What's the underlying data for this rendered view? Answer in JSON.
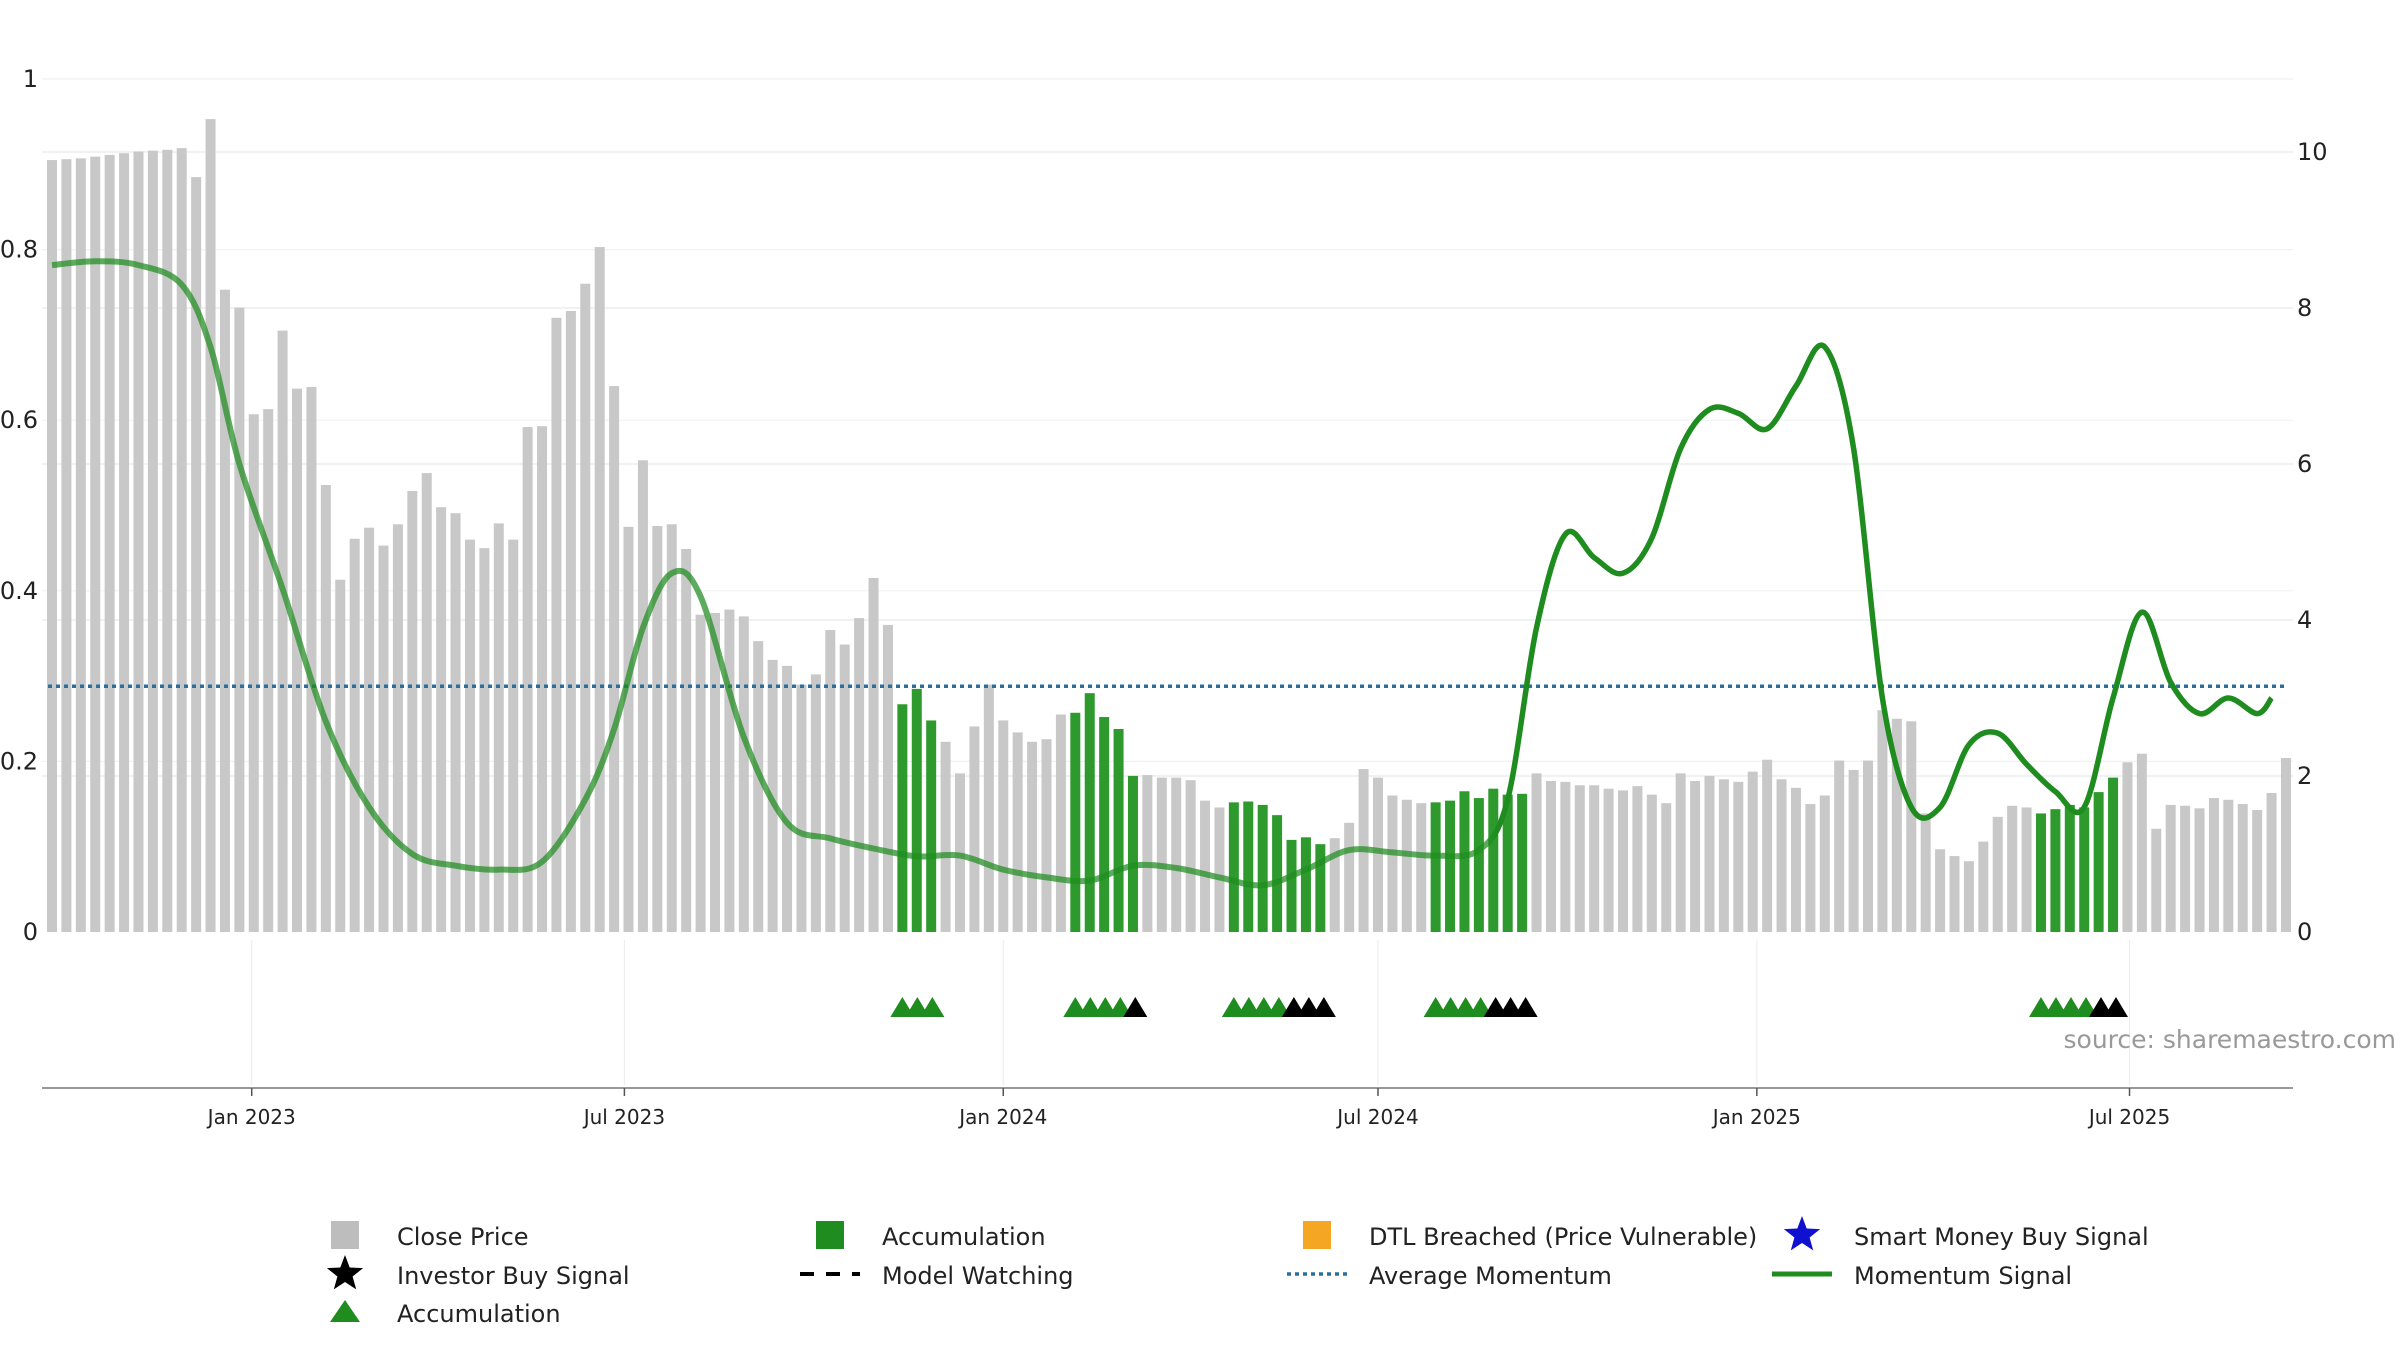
{
  "chart_data": {
    "type": "bar",
    "source": "source: sharemaestro.com",
    "x_ticks": [
      "Jan 2023",
      "Jul 2023",
      "Jan 2024",
      "Jul 2024",
      "Jan 2025",
      "Jul 2025"
    ],
    "y_left_ticks": [
      "0",
      "0.2",
      "0.4",
      "0.6",
      "0.8",
      "1"
    ],
    "y_right_ticks": [
      "0",
      "2",
      "4",
      "6",
      "8",
      "10"
    ],
    "y_left_lim": [
      0,
      1.0
    ],
    "y_right_lim": [
      0,
      10.95
    ],
    "grid": true,
    "legend_position": "bottom",
    "legend": [
      {
        "label": "Close Price",
        "marker": "square",
        "color": "#bdbdbd"
      },
      {
        "label": "Accumulation",
        "marker": "square",
        "color": "#1e8c1e"
      },
      {
        "label": "DTL Breached (Price Vulnerable)",
        "marker": "square",
        "color": "#f5a623"
      },
      {
        "label": "Smart Money Buy Signal",
        "marker": "star",
        "color": "#1010d0"
      },
      {
        "label": "Investor Buy Signal",
        "marker": "star",
        "color": "#000000"
      },
      {
        "label": "Model Watching",
        "marker": "dash",
        "color": "#000000"
      },
      {
        "label": "Average Momentum",
        "marker": "dotted",
        "color": "#2b6f9e"
      },
      {
        "label": "Momentum Signal",
        "marker": "line",
        "color": "#1e8c1e"
      },
      {
        "label": "Accumulation",
        "marker": "triangle",
        "color": "#1e8c1e"
      }
    ],
    "colors": {
      "close": "#c8c8c8",
      "accumulation": "#2e9a2e",
      "momentum": "#1e8c1e",
      "average": "#2b6f9e",
      "investor": "#000000"
    },
    "close_price": {
      "start_date": "2022-09-26",
      "step_days": 7,
      "values": [
        0.905,
        0.906,
        0.907,
        0.909,
        0.911,
        0.913,
        0.915,
        0.916,
        0.917,
        0.919,
        0.885,
        0.953,
        0.753,
        0.732,
        0.607,
        0.613,
        0.705,
        0.637,
        0.639,
        0.524,
        0.413,
        0.461,
        0.474,
        0.453,
        0.478,
        0.517,
        0.538,
        0.498,
        0.491,
        0.46,
        0.45,
        0.479,
        0.46,
        0.592,
        0.593,
        0.72,
        0.728,
        0.76,
        0.803,
        0.64,
        0.475,
        0.553,
        0.476,
        0.478,
        0.449,
        0.372,
        0.374,
        0.378,
        0.37,
        0.341,
        0.319,
        0.312,
        0.29,
        0.302,
        0.354,
        0.337,
        0.368,
        0.415,
        0.36,
        0.267,
        0.285,
        0.248,
        0.223,
        0.186,
        0.241,
        0.29,
        0.248,
        0.234,
        0.223,
        0.226,
        0.255,
        0.257,
        0.28,
        0.252,
        0.238,
        0.183,
        0.184,
        0.181,
        0.181,
        0.178,
        0.154,
        0.146,
        0.152,
        0.153,
        0.149,
        0.137,
        0.108,
        0.111,
        0.103,
        0.11,
        0.128,
        0.191,
        0.181,
        0.16,
        0.155,
        0.151,
        0.152,
        0.154,
        0.165,
        0.157,
        0.168,
        0.161,
        0.162,
        0.186,
        0.177,
        0.176,
        0.172,
        0.172,
        0.168,
        0.166,
        0.171,
        0.161,
        0.151,
        0.186,
        0.177,
        0.183,
        0.179,
        0.176,
        0.188,
        0.202,
        0.179,
        0.169,
        0.15,
        0.16,
        0.201,
        0.19,
        0.201,
        0.26,
        0.25,
        0.247,
        0.139,
        0.097,
        0.089,
        0.083,
        0.106,
        0.135,
        0.148,
        0.146,
        0.139,
        0.144,
        0.149,
        0.146,
        0.164,
        0.181,
        0.199,
        0.209,
        0.121,
        0.149,
        0.148,
        0.145,
        0.157,
        0.155,
        0.15,
        0.143,
        0.163,
        0.204
      ]
    },
    "accumulation_week_ranges": [
      [
        59,
        61
      ],
      [
        71,
        75
      ],
      [
        82,
        88
      ],
      [
        96,
        102
      ],
      [
        138,
        143
      ]
    ],
    "momentum_signal": {
      "x": [
        "2022-09-26",
        "2022-10-17",
        "2022-11-07",
        "2022-11-28",
        "2022-12-12",
        "2022-12-26",
        "2023-01-16",
        "2023-02-06",
        "2023-02-27",
        "2023-03-20",
        "2023-04-10",
        "2023-05-01",
        "2023-05-22",
        "2023-06-12",
        "2023-06-26",
        "2023-07-10",
        "2023-07-24",
        "2023-08-07",
        "2023-08-28",
        "2023-09-18",
        "2023-10-09",
        "2023-10-30",
        "2023-11-20",
        "2023-12-11",
        "2024-01-01",
        "2024-01-22",
        "2024-02-12",
        "2024-03-04",
        "2024-03-25",
        "2024-04-15",
        "2024-05-06",
        "2024-05-27",
        "2024-06-17",
        "2024-07-08",
        "2024-07-29",
        "2024-08-19",
        "2024-09-02",
        "2024-09-16",
        "2024-09-30",
        "2024-10-14",
        "2024-10-28",
        "2024-11-11",
        "2024-11-25",
        "2024-12-09",
        "2024-12-23",
        "2025-01-06",
        "2025-01-20",
        "2025-02-03",
        "2025-02-17",
        "2025-03-03",
        "2025-03-17",
        "2025-03-31",
        "2025-04-14",
        "2025-04-28",
        "2025-05-12",
        "2025-05-26",
        "2025-06-09",
        "2025-06-23",
        "2025-07-07",
        "2025-07-21",
        "2025-08-04",
        "2025-08-18",
        "2025-09-01",
        "2025-09-08"
      ],
      "values": [
        8.55,
        8.6,
        8.55,
        8.3,
        7.5,
        6.0,
        4.4,
        2.7,
        1.6,
        1.0,
        0.85,
        0.8,
        0.9,
        1.7,
        2.6,
        3.9,
        4.6,
        4.3,
        2.5,
        1.4,
        1.2,
        1.07,
        0.97,
        0.98,
        0.8,
        0.7,
        0.66,
        0.85,
        0.82,
        0.7,
        0.6,
        0.8,
        1.05,
        1.02,
        0.98,
        1.05,
        1.7,
        3.9,
        5.1,
        4.8,
        4.6,
        5.05,
        6.2,
        6.7,
        6.65,
        6.45,
        7.0,
        7.5,
        6.2,
        3.0,
        1.6,
        1.6,
        2.4,
        2.55,
        2.15,
        1.8,
        1.6,
        3.0,
        4.1,
        3.2,
        2.8,
        3.0,
        2.8,
        3.0
      ]
    },
    "average_momentum": 3.15,
    "accumulation_triangles": [
      {
        "start_week": 59,
        "green": 3,
        "black": 0
      },
      {
        "start_week": 71,
        "green": 4,
        "black": 1
      },
      {
        "start_week": 82,
        "green": 4,
        "black": 3
      },
      {
        "start_week": 96,
        "green": 4,
        "black": 3
      },
      {
        "start_week": 138,
        "green": 4,
        "black": 2
      }
    ]
  }
}
